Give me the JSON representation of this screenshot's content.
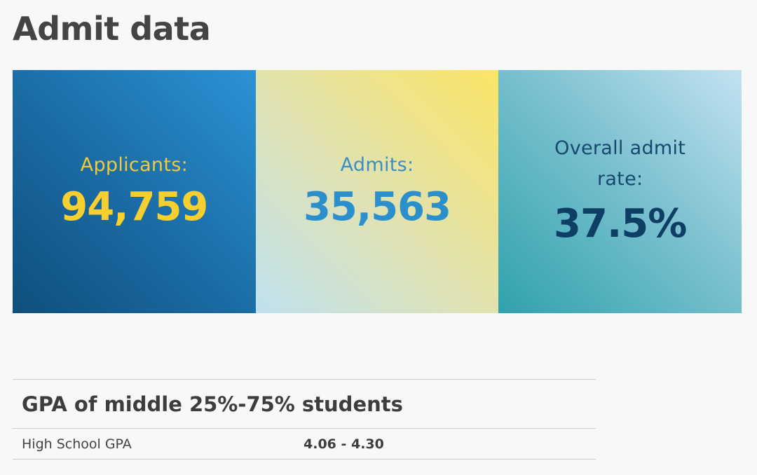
{
  "page": {
    "title": "Admit data"
  },
  "stats": [
    {
      "label": "Applicants:",
      "value": "94,759"
    },
    {
      "label": "Admits:",
      "value": "35,563"
    },
    {
      "label": "Overall admit rate:",
      "value": "37.5%"
    }
  ],
  "gpa": {
    "heading": "GPA of middle 25%-75% students",
    "rows": [
      {
        "label": "High School GPA",
        "value": "4.06 - 4.30"
      }
    ]
  },
  "colors": {
    "applicants_card": "#1a6aa3",
    "applicants_text": "#f7cf2f",
    "admits_card": "#e8e39a",
    "admits_text": "#2b8fcc",
    "rate_card": "#7cc1d0",
    "rate_text": "#0f3e64"
  }
}
